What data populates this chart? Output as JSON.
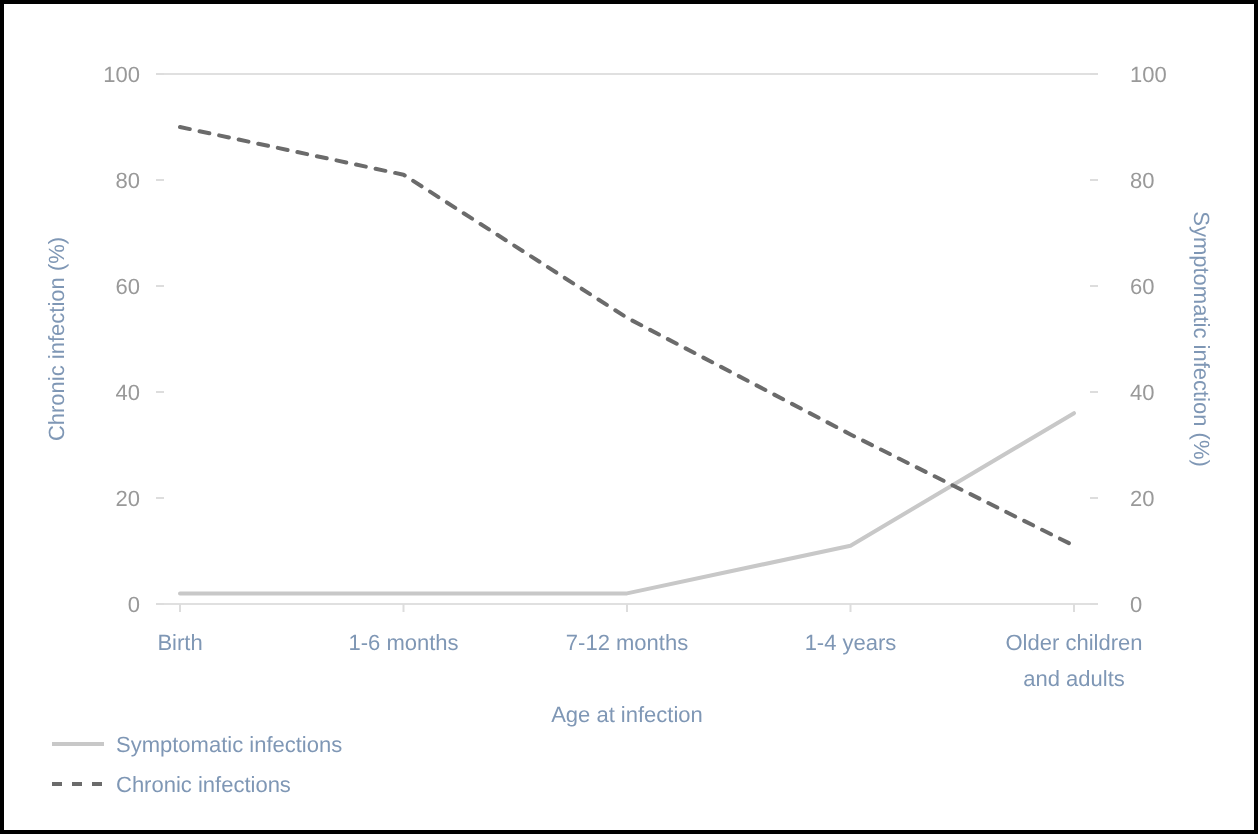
{
  "chart_data": {
    "type": "line",
    "xlabel": "Age at infection",
    "ylabel": "Chronic infection (%)",
    "y2label": "Symptomatic infection (%)",
    "categories": [
      "Birth",
      "1-6 months",
      "7-12 months",
      "1-4 years",
      "Older children and adults"
    ],
    "series": [
      {
        "name": "Symptomatic infections",
        "color": "#c8c8c8",
        "values": [
          2,
          2,
          2,
          11,
          36
        ],
        "axis": "y2",
        "line_style": "solid"
      },
      {
        "name": "Chronic infections",
        "color": "#6b6b6b",
        "values": [
          90,
          81,
          54,
          32,
          11
        ],
        "line_style": "dashed"
      }
    ],
    "ylim": [
      0,
      100
    ],
    "yticks": [
      0,
      20,
      40,
      60,
      80,
      100
    ],
    "y2lim": [
      0,
      100
    ],
    "y2ticks": [
      0,
      20,
      40,
      60,
      80,
      100
    ],
    "grid": false,
    "legend": "bottom left",
    "marker": "none"
  }
}
